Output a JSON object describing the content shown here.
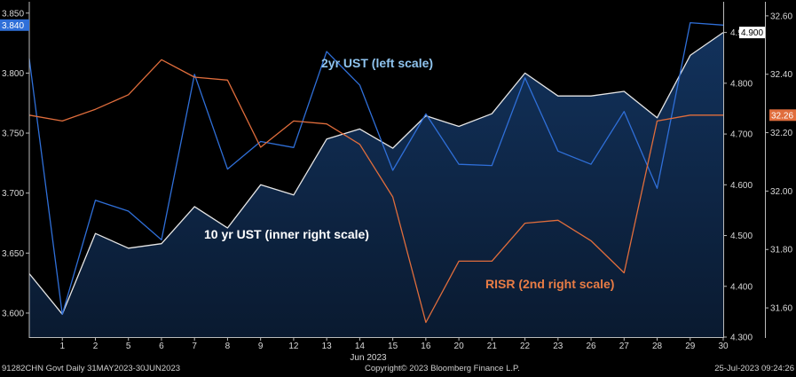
{
  "chart_data": {
    "type": "line",
    "x": [
      "1",
      "2",
      "5",
      "6",
      "7",
      "8",
      "9",
      "12",
      "13",
      "14",
      "15",
      "16",
      "20",
      "21",
      "22",
      "23",
      "26",
      "27",
      "28",
      "29",
      "30"
    ],
    "xlabel": "Jun 2023",
    "series": [
      {
        "name": "2yr UST (left scale)",
        "axis": "left",
        "color": "#2f6fd8",
        "values": [
          3.599,
          3.694,
          3.685,
          3.661,
          3.799,
          3.72,
          3.743,
          3.738,
          3.818,
          3.79,
          3.719,
          3.766,
          3.724,
          3.723,
          3.796,
          3.735,
          3.724,
          3.768,
          3.704,
          3.842,
          3.84
        ]
      },
      {
        "name": "10 yr UST (inner right scale)",
        "axis": "inner_right",
        "color": "#e6e6e6",
        "area": true,
        "values": [
          4.345,
          4.504,
          4.475,
          4.484,
          4.557,
          4.515,
          4.6,
          4.58,
          4.69,
          4.71,
          4.672,
          4.736,
          4.715,
          4.74,
          4.82,
          4.775,
          4.775,
          4.784,
          4.732,
          4.855,
          4.9
        ]
      },
      {
        "name": "RISR (2nd right scale)",
        "axis": "outer_right",
        "color": "#e06d3c",
        "values": [
          32.24,
          32.28,
          32.33,
          32.45,
          32.39,
          32.38,
          32.15,
          32.24,
          32.23,
          32.16,
          31.98,
          31.55,
          31.76,
          31.76,
          31.89,
          31.9,
          31.83,
          31.72,
          32.24,
          32.26,
          32.26
        ]
      }
    ],
    "first_points": {
      "left": 3.812,
      "inner_right": 4.425,
      "outer_right": 32.26
    },
    "axes": {
      "left": {
        "ylim": [
          3.58,
          3.855
        ],
        "ticks": [
          "3.600",
          "3.650",
          "3.700",
          "3.750",
          "3.800",
          "3.850"
        ],
        "color": "#2f6fd8"
      },
      "inner_right": {
        "ylim": [
          4.3,
          4.95
        ],
        "ticks": [
          "4.300",
          "4.400",
          "4.500",
          "4.600",
          "4.700",
          "4.800",
          "4.900"
        ]
      },
      "outer_right": {
        "ylim": [
          31.5,
          32.63
        ],
        "ticks": [
          "31.60",
          "31.80",
          "32.00",
          "32.20",
          "32.40",
          "32.60"
        ]
      }
    },
    "badges": [
      {
        "text": "3.840",
        "axis": "left",
        "color": "#2f6fd8"
      },
      {
        "text": "4.900",
        "axis": "inner_right",
        "color": "#ffffff"
      },
      {
        "text": "32.26",
        "axis": "outer_right",
        "color": "#e06d3c"
      }
    ],
    "annotations": [
      {
        "text": "2yr UST (left scale)",
        "color": "#8fc4ef"
      },
      {
        "text": "10 yr UST (inner right scale)",
        "color": "#ffffff"
      },
      {
        "text": "RISR (2nd right scale)",
        "color": "#e87c45"
      }
    ],
    "grid": false
  },
  "footer": {
    "left": "91282CHN Govt  Daily 31MAY2023-30JUN2023",
    "center": "Copyright© 2023 Bloomberg Finance L.P.",
    "right": "25-Jul-2023 09:24:26"
  }
}
